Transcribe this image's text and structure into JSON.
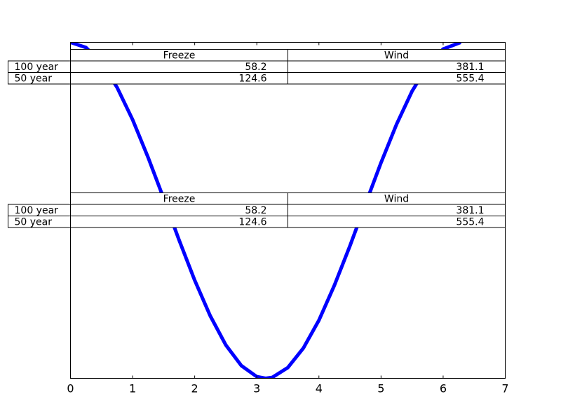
{
  "chart_data": {
    "type": "line",
    "title": "",
    "xlabel": "",
    "ylabel": "",
    "xlim": [
      0,
      7
    ],
    "ylim": [
      -1,
      1
    ],
    "x_ticks": [
      "0",
      "1",
      "2",
      "3",
      "4",
      "5",
      "6",
      "7"
    ],
    "grid": false,
    "series": [
      {
        "color": "#0000ff",
        "x": [
          0,
          0.25,
          0.5,
          0.75,
          1,
          1.25,
          1.5,
          1.75,
          2,
          2.25,
          2.5,
          2.75,
          3,
          3.1416,
          3.25,
          3.5,
          3.75,
          4,
          4.25,
          4.5,
          4.75,
          5,
          5.25,
          5.5,
          5.75,
          6,
          6.283
        ],
        "y": [
          1,
          0.969,
          0.878,
          0.732,
          0.54,
          0.315,
          0.071,
          -0.178,
          -0.416,
          -0.628,
          -0.801,
          -0.924,
          -0.99,
          -1,
          -0.994,
          -0.936,
          -0.82,
          -0.654,
          -0.446,
          -0.211,
          0.038,
          0.284,
          0.512,
          0.709,
          0.861,
          0.96,
          1
        ]
      }
    ],
    "tables": [
      {
        "columns": [
          "Freeze",
          "Wind"
        ],
        "rows": [
          {
            "label": "100 year",
            "values": [
              "58.2",
              "381.1"
            ]
          },
          {
            "label": "50 year",
            "values": [
              "124.6",
              "555.4"
            ]
          }
        ]
      },
      {
        "columns": [
          "Freeze",
          "Wind"
        ],
        "rows": [
          {
            "label": "100 year",
            "values": [
              "58.2",
              "381.1"
            ]
          },
          {
            "label": "50 year",
            "values": [
              "124.6",
              "555.4"
            ]
          }
        ]
      }
    ]
  }
}
